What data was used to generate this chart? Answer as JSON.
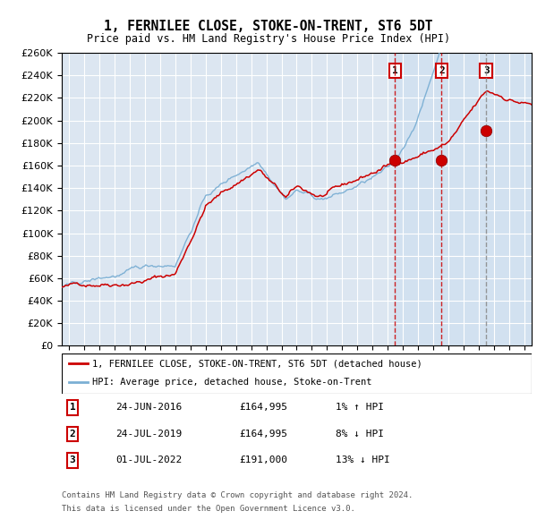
{
  "title": "1, FERNILEE CLOSE, STOKE-ON-TRENT, ST6 5DT",
  "subtitle": "Price paid vs. HM Land Registry's House Price Index (HPI)",
  "ylim": [
    0,
    260000
  ],
  "yticks": [
    0,
    20000,
    40000,
    60000,
    80000,
    100000,
    120000,
    140000,
    160000,
    180000,
    200000,
    220000,
    240000,
    260000
  ],
  "xlim_start": 1994.5,
  "xlim_end": 2025.5,
  "bg_color": "#dce6f1",
  "grid_color": "#ffffff",
  "sale_color": "#cc0000",
  "hpi_color": "#7bafd4",
  "legend_label_sale": "1, FERNILEE CLOSE, STOKE-ON-TRENT, ST6 5DT (detached house)",
  "legend_label_hpi": "HPI: Average price, detached house, Stoke-on-Trent",
  "transactions": [
    {
      "id": 1,
      "date_str": "24-JUN-2016",
      "date_x": 2016.48,
      "price": 164995,
      "pct": "1%",
      "dir": "↑"
    },
    {
      "id": 2,
      "date_str": "24-JUL-2019",
      "date_x": 2019.56,
      "price": 164995,
      "pct": "8%",
      "dir": "↓"
    },
    {
      "id": 3,
      "date_str": "01-JUL-2022",
      "date_x": 2022.5,
      "price": 191000,
      "pct": "13%",
      "dir": "↓"
    }
  ],
  "footer_line1": "Contains HM Land Registry data © Crown copyright and database right 2024.",
  "footer_line2": "This data is licensed under the Open Government Licence v3.0.",
  "vline_colors": [
    "#cc0000",
    "#cc0000",
    "#888888"
  ],
  "vline_styles": [
    "--",
    "--",
    "--"
  ]
}
